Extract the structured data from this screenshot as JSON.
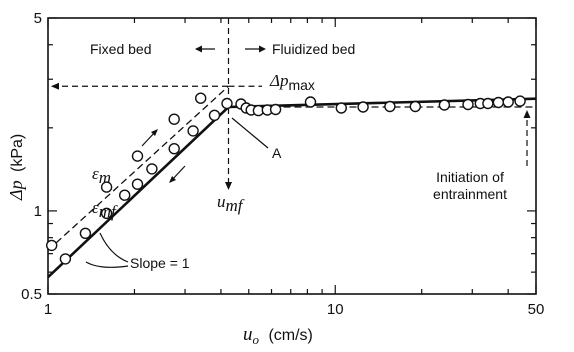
{
  "chart_data": {
    "type": "scatter",
    "xscale": "log",
    "yscale": "log",
    "xlim": [
      1,
      50
    ],
    "ylim": [
      0.5,
      5
    ],
    "xlabel": "u",
    "xlabel_sub": "o",
    "xlabel_unit": "(cm/s)",
    "ylabel": "Δp",
    "ylabel_unit": "(kPa)",
    "xticks": [
      {
        "value": 1,
        "label": "1"
      },
      {
        "value": 10,
        "label": "10"
      },
      {
        "value": 50,
        "label": "50"
      }
    ],
    "yticks": [
      {
        "value": 0.5,
        "label": "0.5"
      },
      {
        "value": 1,
        "label": "1"
      },
      {
        "value": 5,
        "label": "5"
      }
    ],
    "grid": false,
    "series": [
      {
        "style": "open-circle",
        "points": [
          [
            1.03,
            0.75
          ],
          [
            1.6,
            1.22
          ],
          [
            2.05,
            1.58
          ],
          [
            2.75,
            2.15
          ],
          [
            3.4,
            2.56
          ],
          [
            1.15,
            0.67
          ],
          [
            1.35,
            0.83
          ],
          [
            1.6,
            0.98
          ],
          [
            1.85,
            1.14
          ],
          [
            2.05,
            1.25
          ],
          [
            2.3,
            1.42
          ],
          [
            2.75,
            1.68
          ],
          [
            3.2,
            1.95
          ],
          [
            3.8,
            2.22
          ],
          [
            4.2,
            2.45
          ],
          [
            4.7,
            2.44
          ],
          [
            4.9,
            2.36
          ],
          [
            5.1,
            2.32
          ],
          [
            5.4,
            2.31
          ],
          [
            5.8,
            2.32
          ],
          [
            6.2,
            2.33
          ],
          [
            8.2,
            2.48
          ],
          [
            10.5,
            2.36
          ],
          [
            12.5,
            2.38
          ],
          [
            15.5,
            2.39
          ],
          [
            19,
            2.39
          ],
          [
            24,
            2.42
          ],
          [
            29,
            2.43
          ],
          [
            32,
            2.45
          ],
          [
            34,
            2.45
          ],
          [
            37,
            2.47
          ],
          [
            40,
            2.48
          ],
          [
            44,
            2.5
          ]
        ]
      }
    ],
    "fit_lines": [
      {
        "style": "solid",
        "points": [
          [
            1,
            0.575
          ],
          [
            4.25,
            2.38
          ],
          [
            50,
            2.55
          ]
        ]
      },
      {
        "style": "dashed",
        "points": [
          [
            1,
            0.72
          ],
          [
            4.25,
            2.83
          ]
        ]
      },
      {
        "style": "dashed",
        "points": [
          [
            4.25,
            2.38
          ],
          [
            50,
            2.38
          ]
        ]
      }
    ],
    "annotations": {
      "fixed_bed": "Fixed bed",
      "fluidized_bed": "Fluidized bed",
      "dp_max_symbol": "Δp",
      "dp_max_sub": "max",
      "eps_m": "ε",
      "eps_m_sub": "m",
      "eps_mf": "ε",
      "eps_mf_sub": "mf",
      "u_mf": "u",
      "u_mf_sub": "mf",
      "point_A": "A",
      "slope": "Slope = 1",
      "entrainment_line1": "Initiation of",
      "entrainment_line2": "entrainment"
    },
    "markers": {
      "u_mf": 4.25,
      "dp_max": 2.83
    }
  }
}
